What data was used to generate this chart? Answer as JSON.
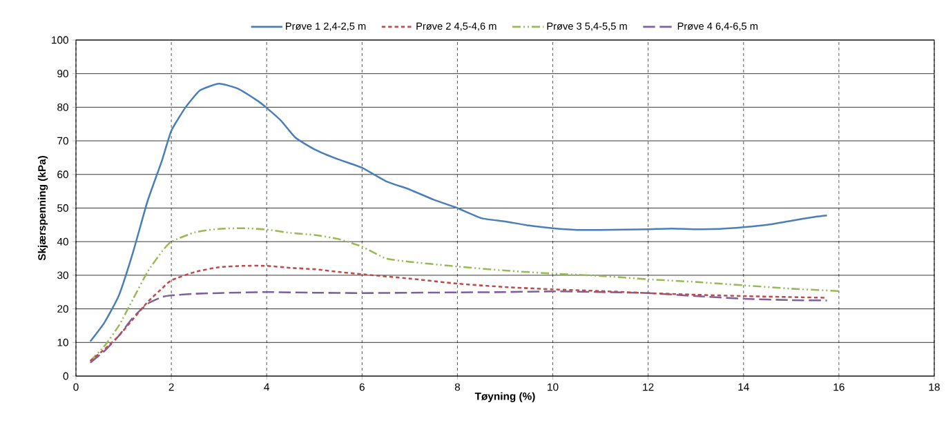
{
  "chart_data": {
    "type": "line",
    "xlabel": "Tøyning (%)",
    "ylabel": "Skjærspenning (kPa)",
    "xlim": [
      0,
      18
    ],
    "xticks": [
      0,
      2,
      4,
      6,
      8,
      10,
      12,
      14,
      16,
      18
    ],
    "ylim": [
      0,
      100
    ],
    "yticks": [
      0,
      10,
      20,
      30,
      40,
      50,
      60,
      70,
      80,
      90,
      100
    ],
    "grid": true,
    "legend": "top",
    "series": [
      {
        "name": "Prøve 1  2,4-2,5 m",
        "color": "#4a7ebb",
        "line_style": "solid",
        "x": [
          0.3,
          0.6,
          0.9,
          1.2,
          1.5,
          1.8,
          2.0,
          2.3,
          2.6,
          3.0,
          3.4,
          3.8,
          4.0,
          4.3,
          4.6,
          5.0,
          5.5,
          6.0,
          6.5,
          7.0,
          7.5,
          8.0,
          8.5,
          9.0,
          9.5,
          10.0,
          10.5,
          11.0,
          11.5,
          12.0,
          12.5,
          13.0,
          13.5,
          14.0,
          14.5,
          15.0,
          15.5,
          15.75
        ],
        "values": [
          10.3,
          16,
          24,
          37,
          52,
          64,
          73,
          80,
          85,
          87,
          85.5,
          82,
          79.8,
          76,
          71,
          67.5,
          64.5,
          62,
          58,
          55.5,
          52.5,
          50,
          47,
          46,
          44.8,
          44,
          43.5,
          43.5,
          43.6,
          43.7,
          43.9,
          43.7,
          43.8,
          44.3,
          45,
          46.2,
          47.4,
          47.8
        ]
      },
      {
        "name": "Prøve 2  4,5-4,6 m",
        "color": "#be4b48",
        "line_style": "dashed",
        "x": [
          0.3,
          0.6,
          0.9,
          1.2,
          1.5,
          1.8,
          2.0,
          2.5,
          3.0,
          3.5,
          4.0,
          4.5,
          5.0,
          5.5,
          6.0,
          7.0,
          8.0,
          9.0,
          10.0,
          11.0,
          12.0,
          13.0,
          14.0,
          15.0,
          15.75
        ],
        "values": [
          4.5,
          8,
          12,
          17,
          22,
          26,
          28.5,
          31,
          32.4,
          32.8,
          32.8,
          32.2,
          31.8,
          31,
          30.3,
          29,
          27.5,
          26.5,
          25.8,
          25.3,
          24.7,
          24.2,
          23.8,
          23.5,
          23.3
        ]
      },
      {
        "name": "Prøve 3  5,4-5,5 m",
        "color": "#98b954",
        "line_style": "dashdotdotted",
        "x": [
          0.3,
          0.6,
          0.9,
          1.2,
          1.5,
          1.8,
          2.0,
          2.5,
          3.0,
          3.5,
          4.0,
          4.5,
          5.0,
          5.5,
          6.0,
          6.5,
          7.0,
          8.0,
          9.0,
          10.0,
          11.0,
          12.0,
          13.0,
          14.0,
          15.0,
          16.0
        ],
        "values": [
          4.5,
          9,
          15,
          23,
          31,
          37,
          40,
          42.8,
          43.8,
          44,
          43.6,
          42.6,
          42,
          40.8,
          38.5,
          35,
          34,
          32.6,
          31.4,
          30.5,
          29.8,
          28.8,
          28,
          27,
          26,
          25.3
        ]
      },
      {
        "name": "Prøve 4  6,4-6,5 m",
        "color": "#7d60a0",
        "line_style": "longdashed",
        "x": [
          0.3,
          0.6,
          0.9,
          1.2,
          1.5,
          1.8,
          2.0,
          2.5,
          3.0,
          4.0,
          5.0,
          6.0,
          7.0,
          8.0,
          9.0,
          10.0,
          11.0,
          12.0,
          13.0,
          14.0,
          15.0,
          15.75
        ],
        "values": [
          4,
          7.5,
          12,
          17.5,
          21.5,
          23.5,
          24,
          24.5,
          24.7,
          25,
          24.8,
          24.7,
          24.8,
          24.9,
          25,
          25.2,
          25,
          24.7,
          23.8,
          23,
          22.6,
          22.5
        ]
      }
    ]
  }
}
